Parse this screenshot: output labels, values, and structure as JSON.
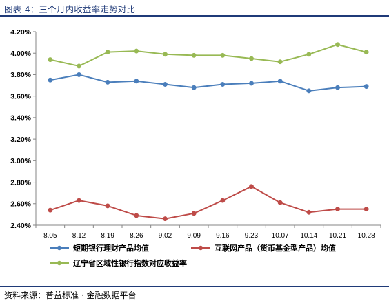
{
  "header": {
    "title": "图表 4：三个月内收益率走势对比"
  },
  "footer": {
    "source": "资料来源：普益标准 · 金融数据平台"
  },
  "colors": {
    "series1": "#4a7ebb",
    "series2": "#be4b48",
    "series3": "#98b954",
    "axis": "#868686",
    "rule": "#1f3a78"
  },
  "chart_data": {
    "type": "line",
    "title": "",
    "xlabel": "",
    "ylabel": "",
    "ylim": [
      0.024,
      0.042
    ],
    "ytick_labels": [
      "4.20%",
      "4.00%",
      "3.80%",
      "3.60%",
      "3.40%",
      "3.20%",
      "3.00%",
      "2.80%",
      "2.60%",
      "2.40%"
    ],
    "ytick_values": [
      0.042,
      0.04,
      0.038,
      0.036,
      0.034,
      0.032,
      0.03,
      0.028,
      0.026,
      0.024
    ],
    "categories": [
      "8.05",
      "8.12",
      "8.19",
      "8.26",
      "9.02",
      "9.09",
      "9.16",
      "9.23",
      "10.07",
      "10.14",
      "10.21",
      "10.28"
    ],
    "grid": false,
    "legend_position": "bottom",
    "series": [
      {
        "name": "短期银行理财产品均值",
        "color": "#4a7ebb",
        "values": [
          0.0375,
          0.038,
          0.0373,
          0.0374,
          0.0371,
          0.0368,
          0.0371,
          0.0372,
          0.0374,
          0.0365,
          0.0368,
          0.0369
        ]
      },
      {
        "name": "互联网产品（货币基金型产品）均值",
        "color": "#be4b48",
        "values": [
          0.0254,
          0.0263,
          0.0258,
          0.0249,
          0.0246,
          0.0251,
          0.0263,
          0.0276,
          0.0261,
          0.0252,
          0.0255,
          0.0255
        ]
      },
      {
        "name": "辽宁省区域性银行指数对应收益率",
        "color": "#98b954",
        "values": [
          0.0394,
          0.0388,
          0.0401,
          0.0402,
          0.0399,
          0.0398,
          0.0398,
          0.0395,
          0.0392,
          0.0399,
          0.0408,
          0.0401
        ]
      }
    ]
  }
}
